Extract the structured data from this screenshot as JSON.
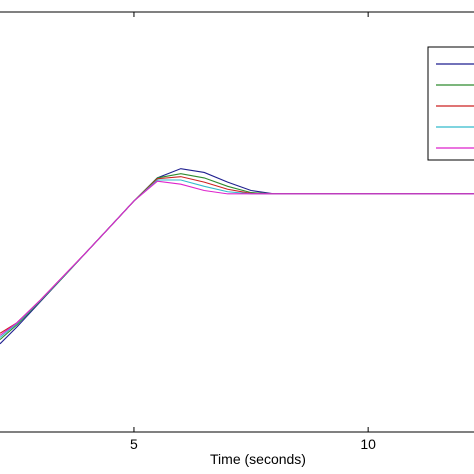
{
  "chart_data": {
    "type": "line",
    "x_label": "Time (seconds)",
    "x": [
      2.14,
      2.5,
      3,
      3.5,
      4,
      4.5,
      5,
      5.5,
      6,
      6.5,
      7,
      7.5,
      8,
      9,
      10,
      11,
      12.26
    ],
    "xlim": [
      2.14,
      12.26
    ],
    "xticks": [
      5,
      10
    ],
    "ylim": [
      0,
      1
    ],
    "series": [
      {
        "color": "#1f1f8f",
        "values": [
          0.21,
          0.25,
          0.31,
          0.37,
          0.43,
          0.49,
          0.55,
          0.605,
          0.627,
          0.618,
          0.595,
          0.575,
          0.567,
          0.567,
          0.567,
          0.567,
          0.567
        ]
      },
      {
        "color": "#2e8b2e",
        "values": [
          0.22,
          0.255,
          0.312,
          0.37,
          0.43,
          0.49,
          0.55,
          0.605,
          0.615,
          0.605,
          0.585,
          0.57,
          0.567,
          0.567,
          0.567,
          0.567,
          0.567
        ]
      },
      {
        "color": "#cc2222",
        "values": [
          0.235,
          0.26,
          0.314,
          0.372,
          0.43,
          0.49,
          0.55,
          0.603,
          0.608,
          0.595,
          0.578,
          0.568,
          0.567,
          0.567,
          0.567,
          0.567,
          0.567
        ]
      },
      {
        "color": "#33bbcc",
        "values": [
          0.225,
          0.258,
          0.313,
          0.371,
          0.43,
          0.49,
          0.55,
          0.6,
          0.6,
          0.585,
          0.572,
          0.567,
          0.567,
          0.567,
          0.567,
          0.567,
          0.567
        ]
      },
      {
        "color": "#dd22cc",
        "values": [
          0.23,
          0.26,
          0.314,
          0.372,
          0.43,
          0.49,
          0.55,
          0.597,
          0.59,
          0.575,
          0.567,
          0.567,
          0.567,
          0.567,
          0.567,
          0.567,
          0.567
        ]
      }
    ]
  }
}
